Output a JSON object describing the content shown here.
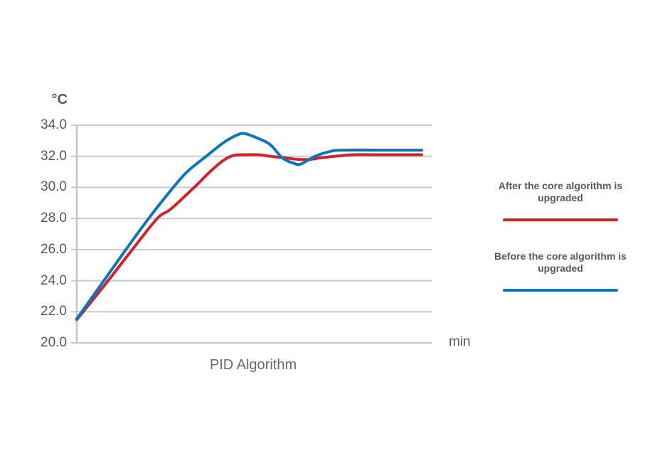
{
  "chart": {
    "title": "PID Algorithm",
    "y_axis_unit": "°C",
    "x_axis_unit": "min",
    "y_tick_labels": [
      "34.0",
      "32.0",
      "30.0",
      "28.0",
      "26.0",
      "24.0",
      "22.0",
      "20.0"
    ],
    "colors": {
      "after_series": "#d2222b",
      "before_series": "#0e75b9",
      "gridline": "#c8c9ca",
      "axis_line": "#c3c4c6",
      "tick_label_text": "#57585b",
      "title_text": "#696a6d",
      "background": "#ffffff"
    }
  },
  "legend": {
    "items": [
      {
        "id": "after",
        "label": "After the core algorithm is upgraded",
        "color": "#d2222b"
      },
      {
        "id": "before",
        "label": "Before the core algorithm is upgraded",
        "color": "#0e75b9"
      }
    ]
  },
  "chart_data": {
    "type": "line",
    "title": "PID Algorithm",
    "ylabel": "°C",
    "xlabel": "min",
    "ylim": [
      20.0,
      34.0
    ],
    "y_ticks": [
      20.0,
      22.0,
      24.0,
      26.0,
      28.0,
      30.0,
      32.0,
      34.0
    ],
    "xlim": [
      0,
      10
    ],
    "x_ticks_labeled": false,
    "grid": "horizontal",
    "legend_position": "right",
    "series": [
      {
        "name": "After the core algorithm is upgraded",
        "color": "#d2222b",
        "points": [
          [
            0,
            21.5
          ],
          [
            0.18,
            22.0
          ],
          [
            0.88,
            24.0
          ],
          [
            1.56,
            26.0
          ],
          [
            2.26,
            28.0
          ],
          [
            2.64,
            28.6
          ],
          [
            3.3,
            30.0
          ],
          [
            3.74,
            31.0
          ],
          [
            4.1,
            31.7
          ],
          [
            4.4,
            32.05
          ],
          [
            4.75,
            32.1
          ],
          [
            5.1,
            32.1
          ],
          [
            5.45,
            32.0
          ],
          [
            5.85,
            31.9
          ],
          [
            6.25,
            31.8
          ],
          [
            6.55,
            31.8
          ],
          [
            6.85,
            31.9
          ],
          [
            7.25,
            32.0
          ],
          [
            7.75,
            32.1
          ],
          [
            8.5,
            32.1
          ],
          [
            9.7,
            32.1
          ]
        ]
      },
      {
        "name": "Before the core algorithm is upgraded",
        "color": "#0e75b9",
        "points": [
          [
            0,
            21.55
          ],
          [
            0.14,
            22.0
          ],
          [
            0.76,
            24.0
          ],
          [
            1.38,
            26.0
          ],
          [
            2.02,
            28.0
          ],
          [
            2.64,
            29.8
          ],
          [
            3.1,
            31.0
          ],
          [
            3.64,
            32.0
          ],
          [
            4.14,
            32.9
          ],
          [
            4.54,
            33.4
          ],
          [
            4.74,
            33.45
          ],
          [
            5.1,
            33.15
          ],
          [
            5.44,
            32.75
          ],
          [
            5.78,
            31.9
          ],
          [
            6.1,
            31.55
          ],
          [
            6.3,
            31.5
          ],
          [
            6.7,
            32.0
          ],
          [
            7.1,
            32.3
          ],
          [
            7.45,
            32.4
          ],
          [
            8.5,
            32.4
          ],
          [
            9.7,
            32.4
          ]
        ]
      }
    ]
  }
}
